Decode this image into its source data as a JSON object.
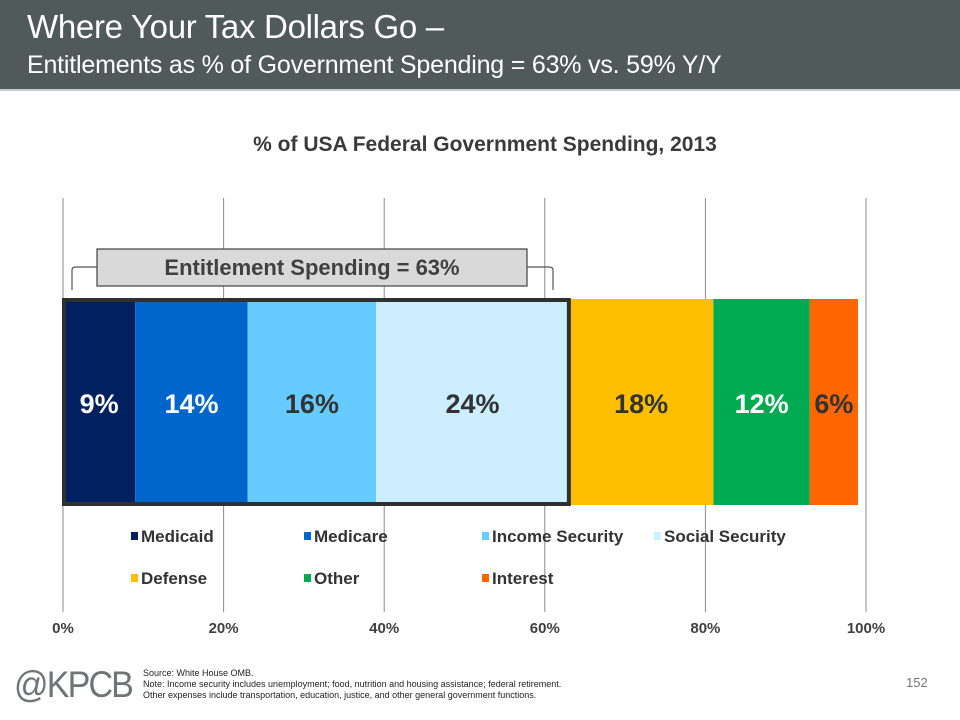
{
  "header": {
    "title": "Where Your Tax Dollars Go –",
    "subtitle": "Entitlements as % of Government Spending = 63% vs. 59% Y/Y"
  },
  "chart_data": {
    "type": "bar",
    "orientation": "horizontal",
    "stacked": true,
    "title": "% of USA Federal Government Spending, 2013",
    "xlabel": "",
    "ylabel": "",
    "xlim": [
      0,
      100
    ],
    "x_ticks": [
      "0%",
      "20%",
      "40%",
      "60%",
      "80%",
      "100%"
    ],
    "x_tick_values": [
      0,
      20,
      40,
      60,
      80,
      100
    ],
    "grid": true,
    "legend_position": "bottom",
    "series": [
      {
        "name": "Medicaid",
        "value": 9,
        "label": "9%",
        "color": "#002060",
        "label_color": "#ffffff"
      },
      {
        "name": "Medicare",
        "value": 14,
        "label": "14%",
        "color": "#0066cc",
        "label_color": "#ffffff"
      },
      {
        "name": "Income Security",
        "value": 16,
        "label": "16%",
        "color": "#66ccff",
        "label_color": "#333333"
      },
      {
        "name": "Social Security",
        "value": 24,
        "label": "24%",
        "color": "#cceeff",
        "label_color": "#333333"
      },
      {
        "name": "Defense",
        "value": 18,
        "label": "18%",
        "color": "#ffbf00",
        "label_color": "#333333"
      },
      {
        "name": "Other",
        "value": 12,
        "label": "12%",
        "color": "#00aa50",
        "label_color": "#ffffff"
      },
      {
        "name": "Interest",
        "value": 6,
        "label": "6%",
        "color": "#ff6600",
        "label_color": "#333333"
      }
    ],
    "annotations": [
      {
        "text": "Entitlement Spending = 63%",
        "spans_series": [
          "Medicaid",
          "Medicare",
          "Income Security",
          "Social Security"
        ],
        "value": 63
      }
    ]
  },
  "footer": {
    "logo": "@KPCB",
    "source": "Source: White House OMB.",
    "note1": "Note: Income security includes unemployment; food, nutrition and housing assistance; federal retirement.",
    "note2": "Other expenses include transportation, education, justice, and other general government functions.",
    "page_number": "152"
  }
}
